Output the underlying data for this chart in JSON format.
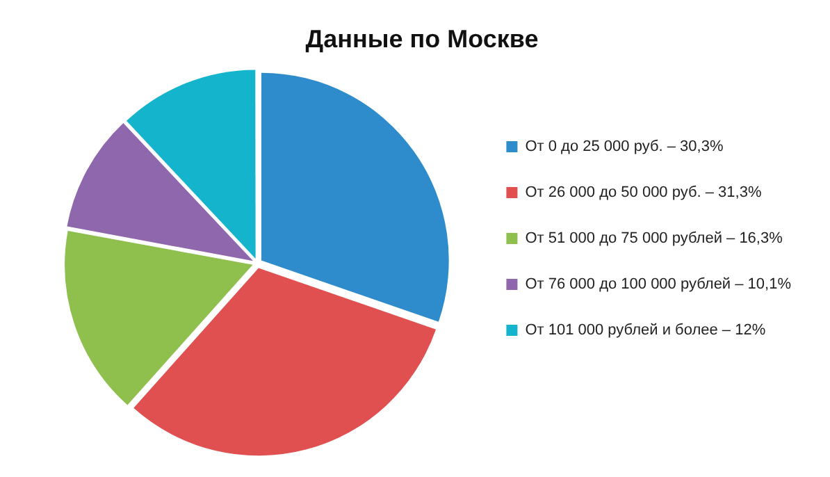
{
  "chart_data": {
    "type": "pie",
    "title": "Данные по Москве",
    "categories": [
      "От 0 до 25 000 руб. – 30,3%",
      "От 26 000 до 50 000 руб. – 31,3%",
      "От 51 000 до 75 000 рублей – 16,3%",
      "От 76 000 до 100 000 рублей – 10,1%",
      "От 101 000 рублей и более – 12%"
    ],
    "values": [
      30.3,
      31.3,
      16.3,
      10.1,
      12
    ],
    "colors": [
      "#2e8bcc",
      "#e15050",
      "#8fc04e",
      "#8e67ad",
      "#13b4cc"
    ],
    "legend": "right"
  }
}
